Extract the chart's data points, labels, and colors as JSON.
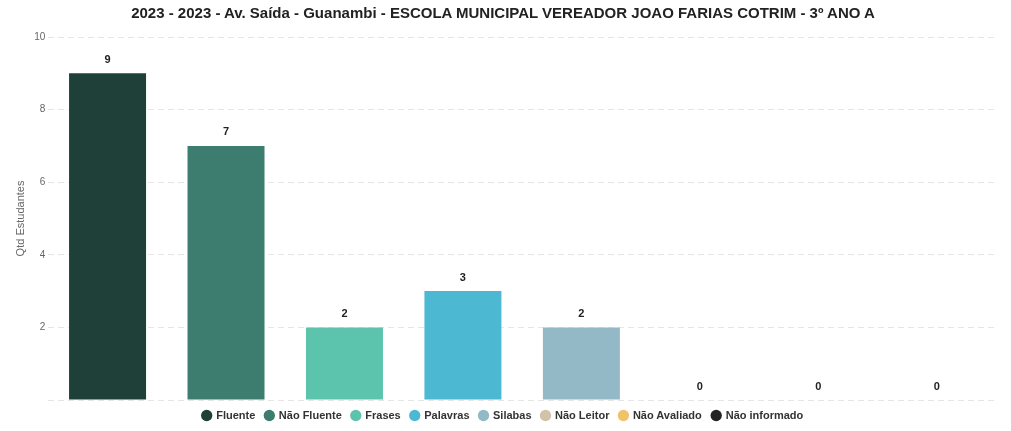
{
  "chart_data": {
    "type": "bar",
    "title": "2023 - 2023 - Av. Saída - Guanambi - ESCOLA MUNICIPAL VEREADOR JOAO FARIAS COTRIM - 3º ANO A",
    "ylabel": "Qtd Estudantes",
    "categories": [
      null,
      null,
      null,
      null,
      null,
      null,
      null,
      null
    ],
    "series": [
      {
        "name": "Fluente",
        "color": "#1f4038",
        "values": [
          9,
          null,
          null,
          null,
          null,
          null,
          null,
          null
        ]
      },
      {
        "name": "Não Fluente",
        "color": "#3d7d70",
        "values": [
          null,
          7,
          null,
          null,
          null,
          null,
          null,
          null
        ]
      },
      {
        "name": "Frases",
        "color": "#5cc4ad",
        "values": [
          null,
          null,
          2,
          null,
          null,
          null,
          null,
          null
        ]
      },
      {
        "name": "Palavras",
        "color": "#4db8d1",
        "values": [
          null,
          null,
          null,
          3,
          null,
          null,
          null,
          null
        ]
      },
      {
        "name": "Silabas",
        "color": "#93b9c6",
        "values": [
          null,
          null,
          null,
          null,
          2,
          null,
          null,
          null
        ]
      },
      {
        "name": "Não Leitor",
        "color": "#d1c3a8",
        "values": [
          null,
          null,
          null,
          null,
          null,
          0,
          null,
          null
        ]
      },
      {
        "name": "Não Avaliado",
        "color": "#f2c26b",
        "values": [
          null,
          null,
          null,
          null,
          null,
          null,
          0,
          null
        ]
      },
      {
        "name": "Não informado",
        "color": "#222222",
        "values": [
          null,
          null,
          null,
          null,
          null,
          null,
          null,
          0
        ]
      }
    ],
    "ylim": [
      0,
      10
    ],
    "yticks": [
      {
        "value": 0,
        "label": null
      },
      2,
      4,
      6,
      8,
      10
    ],
    "grid": "y",
    "legend": "bottom",
    "data_labels": true
  }
}
